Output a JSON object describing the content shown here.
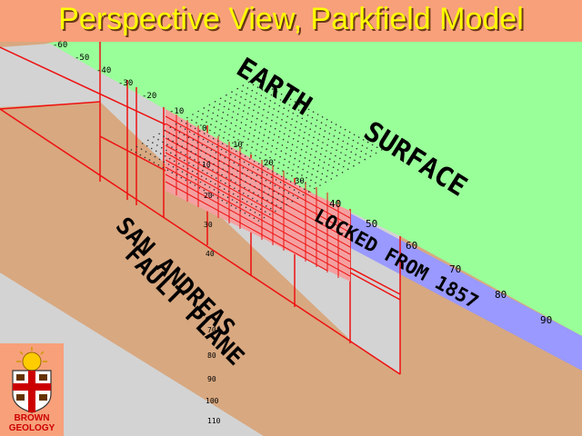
{
  "title": "Perspective View, Parkfield Model",
  "earth_surface_label": [
    "EARTH",
    "SURFACE"
  ],
  "fault_label": [
    "SAN ANDREAS",
    "FAULT PLANE"
  ],
  "locked_label": "LOCKED FROM 1857",
  "along_strike_ticks": [
    "-60",
    "-50",
    "-40",
    "-30",
    "-20",
    "-10",
    "0",
    "10",
    "20",
    "30",
    "40",
    "50",
    "60",
    "70",
    "80",
    "90"
  ],
  "depth_ticks": [
    "10",
    "20",
    "30",
    "40",
    "70",
    "80",
    "90",
    "100",
    "110"
  ],
  "logo": {
    "line1": "BROWN",
    "line2": "GEOLOGY"
  },
  "colors": {
    "background": "#f7a07a",
    "title": "#ffff00",
    "earth_surface": "#99ff99",
    "fault_plane": "#d8a880",
    "grid_panel": "#d3d3d3",
    "grid_line": "#ee1111",
    "locked_band": "#9999ff"
  }
}
